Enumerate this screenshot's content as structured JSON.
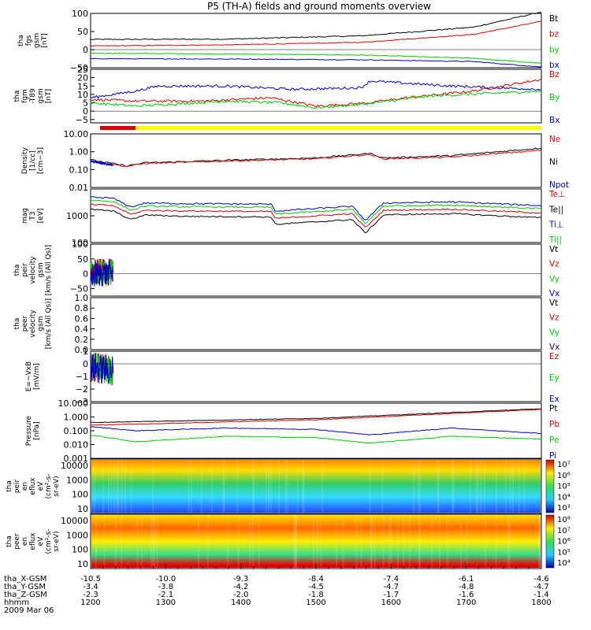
{
  "title": "P5 (TH-A) fields and ground moments overview",
  "colors": {
    "black": "#000000",
    "red": "#dd0000",
    "green": "#00cc00",
    "blue": "#0000cc",
    "yellow": "#ffff00"
  },
  "chart_data": [
    {
      "type": "line",
      "ylabel": [
        "tha",
        "fgs",
        "gsm",
        "[nT]"
      ],
      "ylim": [
        -50,
        100
      ],
      "ticks": [
        "100",
        "50",
        "0",
        "−50"
      ],
      "tick_values": [
        100,
        50,
        0,
        -50
      ],
      "legend": [
        "Bt",
        "bz",
        "by",
        "bx"
      ],
      "legend_colors": [
        "black",
        "red",
        "green",
        "blue"
      ]
    },
    {
      "type": "line",
      "ylabel": [
        "tha",
        "fgm",
        "-T89",
        "gsm",
        "[nT]"
      ],
      "ylim": [
        -7,
        25
      ],
      "ticks": [
        "25",
        "20",
        "15",
        "10",
        "5",
        "0",
        "−5"
      ],
      "tick_values": [
        25,
        20,
        15,
        10,
        5,
        0,
        -5
      ],
      "legend": [
        "Bz",
        "By",
        "Bx"
      ],
      "legend_colors": [
        "red",
        "green",
        "blue"
      ]
    },
    {
      "type": "line",
      "ylabel": [
        "Density",
        "[1/cc]",
        "[cm−3]"
      ],
      "log": true,
      "ylim": [
        0.01,
        10
      ],
      "ticks": [
        "10.00",
        "1.00",
        "0.10",
        "0.01"
      ],
      "tick_values": [
        10,
        1,
        0.1,
        0.01
      ],
      "legend": [
        "Ne",
        "Ni",
        "Npot"
      ],
      "legend_colors": [
        "red",
        "black",
        "blue"
      ]
    },
    {
      "type": "line",
      "ylabel": [
        "mag",
        "T3",
        "[eV]"
      ],
      "log": true,
      "ylim": [
        100,
        10000
      ],
      "ticks": [
        "1000",
        "100"
      ],
      "tick_values": [
        1000,
        100
      ],
      "legend": [
        "Te⊥",
        "Te||",
        "Ti⊥",
        "Ti||"
      ],
      "legend_colors": [
        "red",
        "black",
        "blue",
        "green"
      ]
    },
    {
      "type": "line",
      "ylabel": [
        "tha",
        "peir",
        "velocity",
        "gsm",
        "[km/s (All Qs)]"
      ],
      "ylim": [
        -75,
        100
      ],
      "ticks": [
        "100",
        "50",
        "0",
        "−50"
      ],
      "tick_values": [
        100,
        50,
        0,
        -50
      ],
      "legend": [
        "Vt",
        "Vz",
        "Vy",
        "Vx"
      ],
      "legend_colors": [
        "black",
        "red",
        "green",
        "blue"
      ]
    },
    {
      "type": "line",
      "ylabel": [
        "tha",
        "peer",
        "velocity",
        "gsm",
        "[km/s (All Qs)]"
      ],
      "ylim": [
        0,
        1
      ],
      "ticks": [
        "1.0",
        "0.8",
        "0.6",
        "0.4",
        "0.2",
        "0.0"
      ],
      "tick_values": [
        1,
        0.8,
        0.6,
        0.4,
        0.2,
        0
      ],
      "legend": [
        "Vt",
        "Vz",
        "Vy",
        "Vx"
      ],
      "legend_colors": [
        "black",
        "red",
        "green",
        "blue"
      ]
    },
    {
      "type": "line",
      "ylabel": [
        "E=−VxB",
        "[mV/m]"
      ],
      "ylim": [
        -3,
        1
      ],
      "ticks": [
        "1",
        "0",
        "−1",
        "−2",
        "−3"
      ],
      "tick_values": [
        1,
        0,
        -1,
        -2,
        -3
      ],
      "legend": [
        "Ez",
        "Ey",
        "Ex"
      ],
      "legend_colors": [
        "red",
        "green",
        "blue"
      ]
    },
    {
      "type": "line",
      "ylabel": [
        "Pressure",
        "[nPa]"
      ],
      "log": true,
      "ylim": [
        0.001,
        10
      ],
      "ticks": [
        "10.000",
        "1.000",
        "0.100",
        "0.010",
        "0.001"
      ],
      "tick_values": [
        10,
        1,
        0.1,
        0.01,
        0.001
      ],
      "legend": [
        "Pt",
        "Pb",
        "Pe",
        "Pi"
      ],
      "legend_colors": [
        "black",
        "red",
        "green",
        "blue"
      ]
    },
    {
      "type": "heatmap",
      "ylabel": [
        "tha",
        "peir",
        "en",
        "eflux",
        "eV",
        "(cm²-s-",
        "sr-eV)"
      ],
      "ticks": [
        "10000",
        "1000",
        "100",
        "10"
      ],
      "colorbar": [
        "10⁷",
        "10⁶",
        "10⁵",
        "10⁴",
        "10³"
      ]
    },
    {
      "type": "heatmap",
      "ylabel": [
        "tha",
        "peer",
        "en",
        "eflux",
        "eV",
        "(cm²-s-",
        "sr-eV)"
      ],
      "ticks": [
        "10000",
        "1000",
        "100",
        "10"
      ],
      "colorbar": [
        "10⁸",
        "10⁷",
        "10⁶",
        "10⁵",
        "10⁴"
      ]
    }
  ],
  "xaxis": {
    "rows": [
      {
        "label": "tha_X-GSM",
        "values": [
          "-10.5",
          "-10.0",
          "-9.3",
          "-8.4",
          "-7.4",
          "-6.1",
          "-4.6"
        ]
      },
      {
        "label": "tha_Y-GSM",
        "values": [
          "-3.4",
          "-3.8",
          "-4.2",
          "-4.5",
          "-4.7",
          "-4.8",
          "-4.7"
        ]
      },
      {
        "label": "tha_Z-GSM",
        "values": [
          "-2.3",
          "-2.1",
          "-2.0",
          "-1.8",
          "-1.7",
          "-1.6",
          "-1.4"
        ]
      },
      {
        "label": "hhmm",
        "values": [
          "1200",
          "1300",
          "1400",
          "1500",
          "1600",
          "1700",
          "1800"
        ]
      }
    ],
    "date": "2009 Mar 06"
  }
}
